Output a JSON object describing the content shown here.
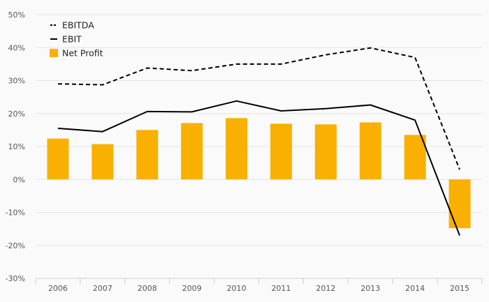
{
  "chart_data": {
    "type": "bar",
    "categories": [
      "2006",
      "2007",
      "2008",
      "2009",
      "2010",
      "2011",
      "2012",
      "2013",
      "2014",
      "2015"
    ],
    "ylim": [
      -30,
      50
    ],
    "yticks": [
      -30,
      -20,
      -10,
      0,
      10,
      20,
      30,
      40,
      50
    ],
    "ytick_labels": [
      "-30%",
      "-20%",
      "-10%",
      "0%",
      "10%",
      "20%",
      "30%",
      "40%",
      "50%"
    ],
    "grid": true,
    "legend_position": "top-left",
    "series": [
      {
        "name": "EBITDA",
        "type": "line",
        "style": "dashed",
        "color": "#000000",
        "values": [
          29.0,
          28.7,
          33.8,
          33.0,
          35.0,
          35.0,
          37.8,
          39.9,
          37.0,
          3.0
        ]
      },
      {
        "name": "EBIT",
        "type": "line",
        "style": "solid",
        "color": "#000000",
        "values": [
          15.5,
          14.5,
          20.6,
          20.5,
          23.8,
          20.8,
          21.5,
          22.6,
          18.0,
          -17.0
        ]
      },
      {
        "name": "Net Profit",
        "type": "bar",
        "color": "#f9b000",
        "values": [
          12.4,
          10.7,
          15.0,
          17.1,
          18.6,
          16.9,
          16.7,
          17.3,
          13.5,
          -14.8
        ]
      }
    ]
  }
}
